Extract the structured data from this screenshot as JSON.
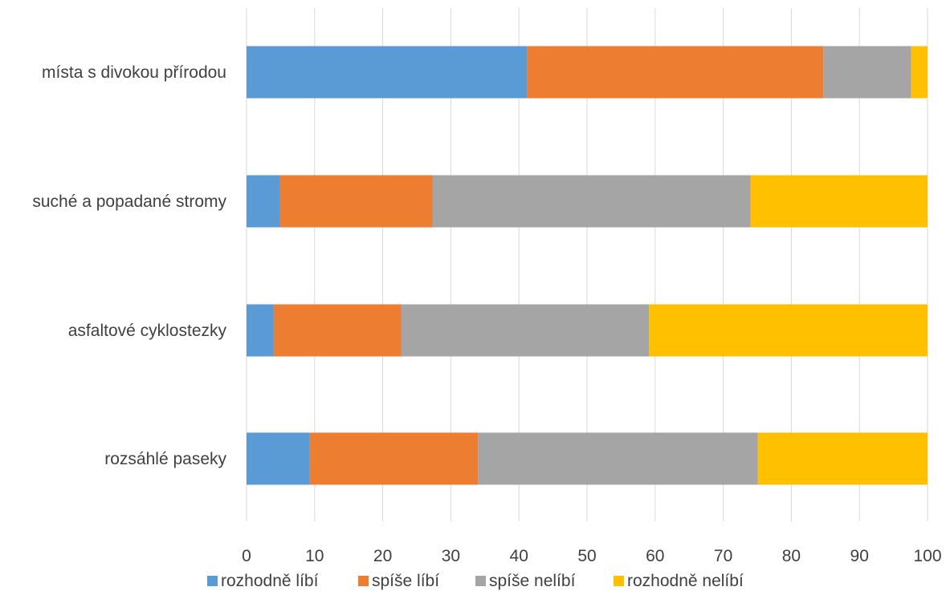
{
  "chart_data": {
    "type": "bar",
    "orientation": "horizontal",
    "stacked": true,
    "categories": [
      "místa s divokou přírodou",
      "suché a popadané stromy",
      "asfaltové cyklostezky",
      "rozsáhlé paseky"
    ],
    "series": [
      {
        "name": "rozhodně líbí",
        "color": "#5b9bd5",
        "values": [
          41.2,
          4.9,
          4.0,
          9.3
        ]
      },
      {
        "name": "spíše líbí",
        "color": "#ed7d31",
        "values": [
          43.5,
          22.4,
          18.7,
          24.7
        ]
      },
      {
        "name": "spíše nelíbí",
        "color": "#a5a5a5",
        "values": [
          12.9,
          46.7,
          36.4,
          41.1
        ]
      },
      {
        "name": "rozhodně nelíbí",
        "color": "#ffc000",
        "values": [
          2.4,
          26.0,
          40.9,
          24.9
        ]
      }
    ],
    "xlim": [
      0,
      100
    ],
    "xticks": [
      0,
      10,
      20,
      30,
      40,
      50,
      60,
      70,
      80,
      90,
      100
    ],
    "grid": true,
    "legend_position": "bottom"
  }
}
